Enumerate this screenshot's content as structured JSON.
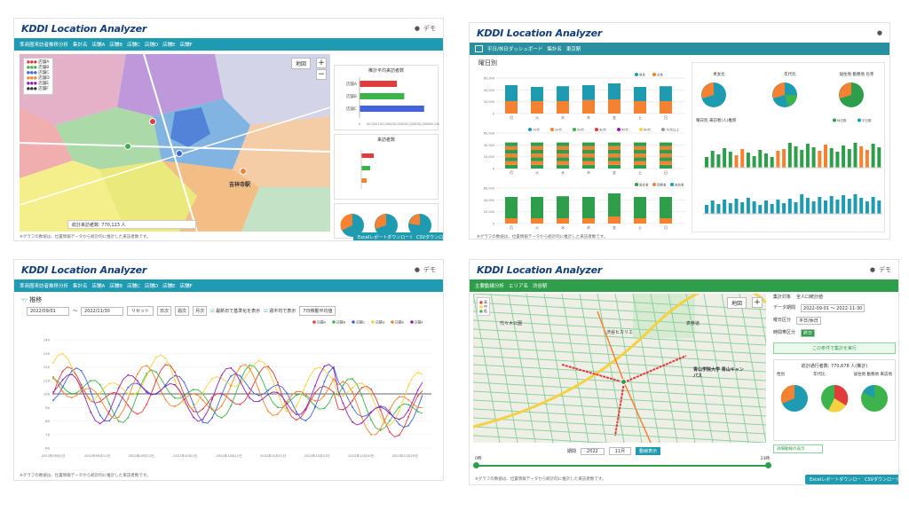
{
  "brand": {
    "name": "KDDI Location Analyzer"
  },
  "common": {
    "user": "デモ",
    "excel_label": "Excelレポートダウンロード",
    "csv_label": "CSVダウンロード"
  },
  "p1": {
    "nav_title": "準商圏来訪者推移分析",
    "nav_items": [
      "集計名",
      "店舗A",
      "店舗B",
      "店舗C",
      "店舗D",
      "店舗E",
      "店舗F"
    ],
    "legend": [
      "店舗A",
      "店舗B",
      "店舗C",
      "店舗D",
      "店舗E",
      "店舗F"
    ],
    "map_toggle": "地図",
    "area_label": "吉祥寺駅",
    "stat_label": "総計来訪者数: 770,123 人",
    "chart1_title": "推計平均来訪者数",
    "chart2_title": "来訪者数",
    "bars1": [
      {
        "label": "店舗A",
        "value": 150000
      },
      {
        "label": "店舗B",
        "value": 180000
      },
      {
        "label": "店舗C",
        "value": 260000
      }
    ],
    "bars1_ticks": [
      "0",
      "50,000",
      "100,000",
      "150,000",
      "200,000",
      "250,000",
      "300,000"
    ],
    "pies": [
      "店舗A",
      "店舗B",
      "店舗C"
    ],
    "color_blue": "#1e9bb0",
    "footnote": "※グラフの数値は、位置情報データから統計的に推計した来訪者数です。"
  },
  "p2": {
    "nav_title": "平日/休日ダッシュボード",
    "nav_items": [
      "集計名",
      "東京駅"
    ],
    "section": "曜日別",
    "days": [
      "月",
      "火",
      "水",
      "木",
      "金",
      "土",
      "日"
    ],
    "legend1": [
      "男性",
      "女性"
    ],
    "legend2": [
      "10代",
      "20代",
      "30代",
      "40代",
      "50代",
      "60代",
      "70代以上"
    ],
    "legend3": [
      "居住者",
      "勤務者",
      "来訪者"
    ],
    "y_ticks": [
      "0",
      "20,000",
      "40,000",
      "60,000"
    ],
    "mini_labels": [
      "男女比",
      "年代比",
      "居住地 勤務地 比率"
    ],
    "select_label": "曜日別 来訪者(人)推移",
    "legend4": [
      "休日数",
      "平日数"
    ],
    "footnote": "※グラフの数値は、位置情報データから統計的に推計した来訪者数です。"
  },
  "p3": {
    "nav_title": "準商圏来訪者推移分析",
    "nav_items": [
      "集計名",
      "店舗A",
      "店舗B",
      "店舗C",
      "店舗D",
      "店舗E",
      "店舗F"
    ],
    "section": "推移",
    "date_from": "2022/09/01",
    "date_to": "2022/11/30",
    "btn_reset": "リセット",
    "btn_day": "日次",
    "btn_week": "週次",
    "btn_month": "月次",
    "chk1": "最新日で基準化を表示",
    "chk2": "週平均で表示",
    "select": "7日移動平均値",
    "legend": [
      "店舗A",
      "店舗B",
      "店舗C",
      "店舗D",
      "店舗E",
      "店舗F"
    ],
    "y_ticks": [
      "60",
      "70",
      "80",
      "90",
      "100",
      "110",
      "120",
      "130",
      "140"
    ],
    "x_ticks": [
      "2022年09月1日",
      "2022年09月11日",
      "2022年09月21日",
      "2022年10月1日",
      "2022年10月11日",
      "2022年10月21日",
      "2022年10月31日",
      "2022年11月10日",
      "2022年11月20日"
    ],
    "footnote": "※グラフの数値は、位置情報データから統計的に推計した来訪者数です。"
  },
  "p4": {
    "nav_title": "主要動線分析",
    "nav_items": [
      "エリア名",
      "渋谷駅"
    ],
    "map_toggle": "地図",
    "labels": [
      "渋谷ヒカリエ",
      "青山学院大学 青山キャンパス",
      "代々木公園",
      "表参道"
    ],
    "fields": [
      {
        "label": "集計対象",
        "value": "全人口統計値"
      },
      {
        "label": "データ期間",
        "value": "2022-09-01 ～ 2022-11-30"
      },
      {
        "label": "曜日区分",
        "value": "平日/休日"
      },
      {
        "label": "時間帯区分",
        "value": "終日"
      }
    ],
    "btn_apply": "この条件で集計を実行",
    "stat": "総計通行者数: 770,678 人(推計)",
    "pies": [
      "性別",
      "年代比",
      "居住地 勤務地 来訪地"
    ],
    "btn_show": "詳細動線の表示",
    "slider_label": "期間",
    "slider_min": "0時",
    "slider_max": "23時",
    "select1": "2022",
    "select2": "11月",
    "btn_go": "動線表示",
    "footnote": "※グラフの数値は、位置情報データから統計的に推計した来訪者数です。"
  }
}
